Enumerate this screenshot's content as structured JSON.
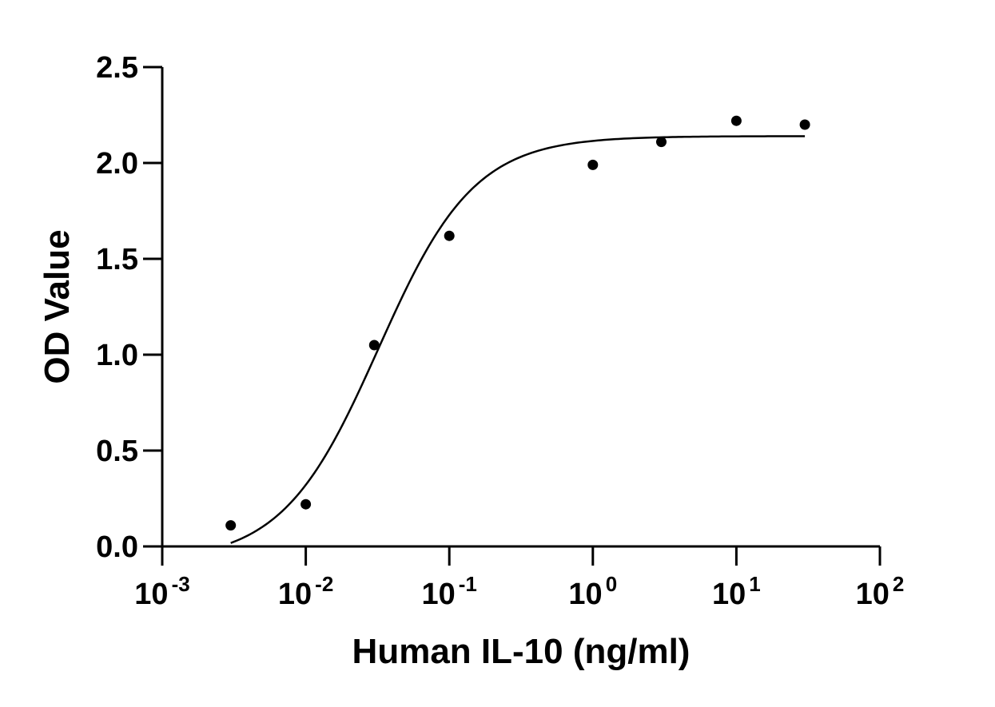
{
  "chart_data": {
    "type": "scatter",
    "title": "",
    "xlabel": "Human IL-10 (ng/ml)",
    "ylabel": "OD Value",
    "xscale": "log",
    "xlim": [
      0.001,
      100
    ],
    "ylim": [
      0,
      2.5
    ],
    "grid": false,
    "yticks": [
      {
        "value": 0.0,
        "label": "0.0"
      },
      {
        "value": 0.5,
        "label": "0.5"
      },
      {
        "value": 1.0,
        "label": "1.0"
      },
      {
        "value": 1.5,
        "label": "1.5"
      },
      {
        "value": 2.0,
        "label": "2.0"
      },
      {
        "value": 2.5,
        "label": "2.5"
      }
    ],
    "xticks": [
      {
        "value": 0.001,
        "base": "10",
        "exp": "-3"
      },
      {
        "value": 0.01,
        "base": "10",
        "exp": "-2"
      },
      {
        "value": 0.1,
        "base": "10",
        "exp": "-1"
      },
      {
        "value": 1,
        "base": "10",
        "exp": "0"
      },
      {
        "value": 10,
        "base": "10",
        "exp": "1"
      },
      {
        "value": 100,
        "base": "10",
        "exp": "2"
      }
    ],
    "series": [
      {
        "points": [
          {
            "x": 0.003,
            "y": 0.11
          },
          {
            "x": 0.01,
            "y": 0.22
          },
          {
            "x": 0.03,
            "y": 1.05
          },
          {
            "x": 0.1,
            "y": 1.62
          },
          {
            "x": 1,
            "y": 1.99
          },
          {
            "x": 3,
            "y": 2.11
          },
          {
            "x": 10,
            "y": 2.22
          },
          {
            "x": 30,
            "y": 2.2
          }
        ],
        "fit": {
          "model": "4PL",
          "bottom": -0.08,
          "top": 2.14,
          "ec50": 0.032,
          "hill": 1.3,
          "x_range": [
            0.003,
            30
          ]
        }
      }
    ]
  }
}
